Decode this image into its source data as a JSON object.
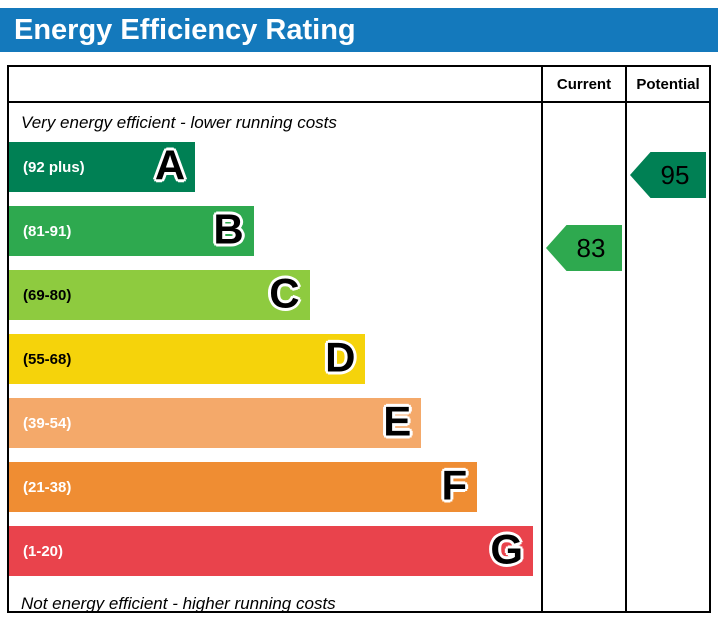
{
  "title": "Energy Efficiency Rating",
  "colors": {
    "title_bg": "#1479bc",
    "title_text": "#ffffff",
    "border": "#000000"
  },
  "header": {
    "current_label": "Current",
    "potential_label": "Potential"
  },
  "top_note": "Very energy efficient - lower running costs",
  "bottom_note": "Not energy efficient - higher running costs",
  "chart_data": {
    "type": "bar",
    "title": "Energy Efficiency Rating",
    "orientation": "horizontal",
    "bands": [
      {
        "letter": "A",
        "range_label": "(92 plus)",
        "range_min": 92,
        "range_max": 100,
        "color": "#008054",
        "text_color": "#ffffff",
        "width_pct": 35
      },
      {
        "letter": "B",
        "range_label": "(81-91)",
        "range_min": 81,
        "range_max": 91,
        "color": "#2ea94f",
        "text_color": "#ffffff",
        "width_pct": 46
      },
      {
        "letter": "C",
        "range_label": "(69-80)",
        "range_min": 69,
        "range_max": 80,
        "color": "#8ecb3f",
        "text_color": "#000000",
        "width_pct": 56.5
      },
      {
        "letter": "D",
        "range_label": "(55-68)",
        "range_min": 55,
        "range_max": 68,
        "color": "#f5d30b",
        "text_color": "#000000",
        "width_pct": 67
      },
      {
        "letter": "E",
        "range_label": "(39-54)",
        "range_min": 39,
        "range_max": 54,
        "color": "#f4a96a",
        "text_color": "#ffffff",
        "width_pct": 77.5
      },
      {
        "letter": "F",
        "range_label": "(21-38)",
        "range_min": 21,
        "range_max": 38,
        "color": "#ef8d33",
        "text_color": "#ffffff",
        "width_pct": 88
      },
      {
        "letter": "G",
        "range_label": "(1-20)",
        "range_min": 1,
        "range_max": 20,
        "color": "#e9434c",
        "text_color": "#ffffff",
        "width_pct": 98.5
      }
    ],
    "current": {
      "value": "83",
      "band": "B",
      "color": "#2ea94f"
    },
    "potential": {
      "value": "95",
      "band": "A",
      "color": "#008054"
    }
  }
}
